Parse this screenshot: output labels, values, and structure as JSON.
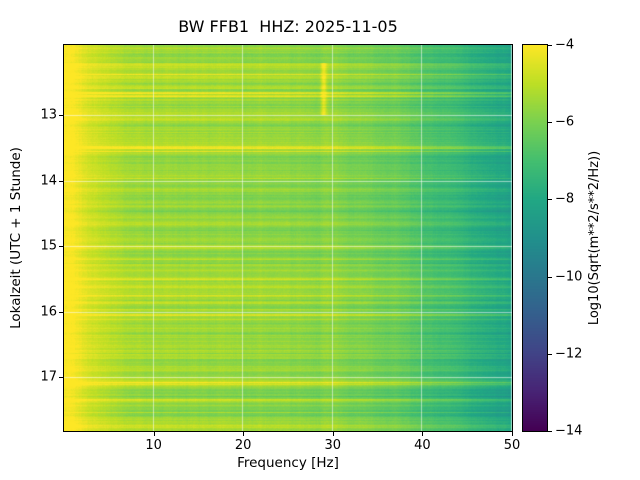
{
  "chart_data": {
    "type": "heatmap",
    "title": "BW FFB1  HHZ: 2025-11-05",
    "xlabel": "Frequency [Hz]",
    "ylabel": "Lokalzeit (UTC + 1 Stunde)",
    "x_ticks": [
      10,
      20,
      30,
      40,
      50
    ],
    "xlim": [
      0,
      50
    ],
    "y_ticks": [
      13,
      14,
      15,
      16,
      17
    ],
    "ylim_hours": [
      11.93,
      17.82
    ],
    "y_direction": "time-increases-downward",
    "grid": true,
    "grid_color": "#ffffff",
    "colormap": "viridis",
    "colorbar": {
      "label": "Log10(Sqrt(m**2/s**2/Hz))",
      "ticks": [
        -4,
        -6,
        -8,
        -10,
        -12,
        -14
      ],
      "vmin": -14,
      "vmax": -4
    },
    "mean_profile": {
      "frequency_hz": [
        0.3,
        1,
        2,
        3,
        5,
        8,
        12,
        18,
        25,
        30,
        35,
        40,
        45,
        50
      ],
      "log10_value": [
        -4.0,
        -4.1,
        -4.3,
        -4.7,
        -5.1,
        -5.35,
        -5.5,
        -5.65,
        -5.8,
        -5.9,
        -6.15,
        -6.8,
        -7.6,
        -8.2
      ]
    },
    "features": [
      {
        "name": "bright-transient",
        "frequency_hz": 29,
        "time_hours_start": 12.2,
        "time_hours_end": 13.0,
        "boost": 1.3
      }
    ],
    "viridis_stops": [
      "#440154",
      "#482475",
      "#414487",
      "#355f8d",
      "#2a788e",
      "#21918c",
      "#22a884",
      "#44bf70",
      "#7ad151",
      "#bddf26",
      "#fde725"
    ]
  }
}
